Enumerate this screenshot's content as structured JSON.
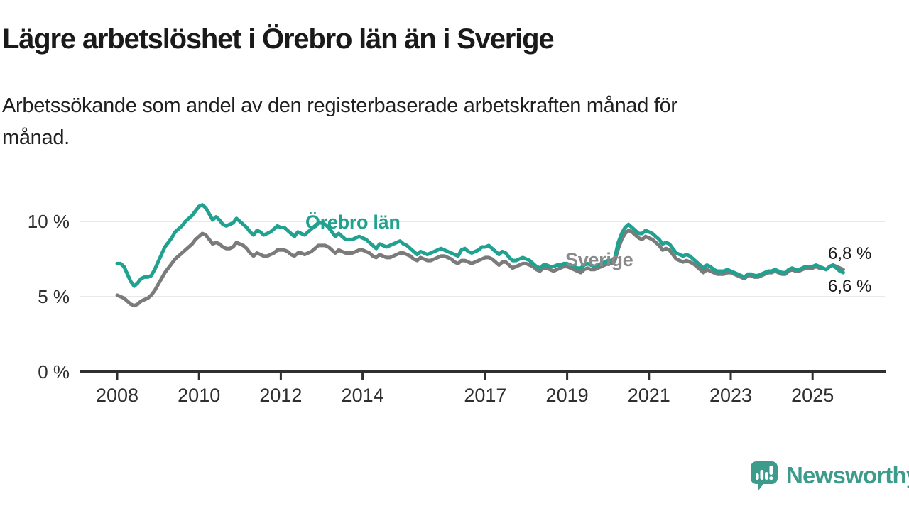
{
  "header": {
    "title": "Lägre arbetslöshet i Örebro län än i Sverige",
    "subtitle_line1": "Arbetssökande som andel av den registerbaserade arbetskraften månad för",
    "subtitle_line2": "månad."
  },
  "footer": {
    "brand": "Newsworthy"
  },
  "colors": {
    "orebro": "#21a190",
    "sverige": "#7b7b7b",
    "sverige_label": "#8a8a8a",
    "logo": "#3d9b8c",
    "axis": "#2f2f2f",
    "grid": "#e0e0e0",
    "text": "#1a1a1a"
  },
  "chart_data": {
    "type": "line",
    "unit": "percent",
    "frequency": "monthly",
    "start": "2008-01",
    "end": "2025-10",
    "ylim": [
      0,
      12
    ],
    "grid": "horizontal",
    "legend_position": "inline-labels",
    "y_ticks": [
      {
        "value": 0,
        "label": "0 %"
      },
      {
        "value": 5,
        "label": "5 %"
      },
      {
        "value": 10,
        "label": "10 %"
      }
    ],
    "x_ticks": [
      {
        "year": 2008,
        "label": "2008"
      },
      {
        "year": 2010,
        "label": "2010"
      },
      {
        "year": 2012,
        "label": "2012"
      },
      {
        "year": 2014,
        "label": "2014"
      },
      {
        "year": 2017,
        "label": "2017"
      },
      {
        "year": 2019,
        "label": "2019"
      },
      {
        "year": 2021,
        "label": "2021"
      },
      {
        "year": 2023,
        "label": "2023"
      },
      {
        "year": 2025,
        "label": "2025"
      }
    ],
    "series": [
      {
        "name": "Örebro län",
        "color": "#21a190",
        "end_label": "6,6 %",
        "values": [
          7.2,
          7.2,
          7.0,
          6.5,
          6.0,
          5.7,
          5.9,
          6.2,
          6.3,
          6.3,
          6.4,
          6.8,
          7.3,
          7.8,
          8.3,
          8.6,
          8.9,
          9.3,
          9.5,
          9.7,
          10.0,
          10.2,
          10.4,
          10.7,
          11.0,
          11.1,
          10.9,
          10.5,
          10.1,
          10.3,
          10.1,
          9.8,
          9.7,
          9.8,
          9.9,
          10.2,
          10.0,
          9.8,
          9.6,
          9.3,
          9.1,
          9.4,
          9.3,
          9.1,
          9.2,
          9.3,
          9.5,
          9.7,
          9.6,
          9.6,
          9.4,
          9.2,
          9.0,
          9.3,
          9.2,
          9.1,
          9.3,
          9.5,
          9.7,
          9.9,
          9.9,
          9.8,
          9.6,
          9.3,
          9.0,
          9.2,
          9.0,
          8.8,
          8.8,
          8.8,
          8.9,
          9.0,
          8.9,
          8.8,
          8.6,
          8.4,
          8.2,
          8.5,
          8.4,
          8.3,
          8.4,
          8.5,
          8.6,
          8.7,
          8.5,
          8.4,
          8.2,
          8.0,
          7.8,
          8.0,
          7.9,
          7.8,
          7.9,
          8.0,
          8.1,
          8.2,
          8.1,
          8.0,
          7.9,
          7.8,
          7.7,
          8.1,
          8.2,
          8.0,
          7.9,
          8.0,
          8.1,
          8.3,
          8.3,
          8.4,
          8.2,
          8.0,
          7.8,
          8.0,
          7.9,
          7.6,
          7.4,
          7.4,
          7.5,
          7.6,
          7.5,
          7.4,
          7.2,
          7.0,
          6.9,
          7.1,
          7.1,
          7.0,
          7.0,
          7.1,
          7.1,
          7.2,
          7.2,
          7.1,
          7.0,
          6.9,
          6.9,
          7.1,
          7.2,
          7.1,
          7.0,
          7.1,
          7.2,
          7.3,
          7.4,
          7.4,
          7.6,
          8.6,
          9.2,
          9.6,
          9.8,
          9.6,
          9.4,
          9.2,
          9.2,
          9.4,
          9.3,
          9.2,
          9.0,
          8.8,
          8.5,
          8.6,
          8.5,
          8.2,
          7.9,
          7.8,
          7.7,
          7.8,
          7.7,
          7.5,
          7.3,
          7.1,
          6.9,
          7.1,
          7.0,
          6.8,
          6.7,
          6.7,
          6.7,
          6.8,
          6.7,
          6.6,
          6.5,
          6.4,
          6.3,
          6.5,
          6.5,
          6.4,
          6.4,
          6.5,
          6.6,
          6.7,
          6.7,
          6.8,
          6.7,
          6.6,
          6.6,
          6.8,
          6.9,
          6.8,
          6.8,
          6.9,
          7.0,
          7.0,
          7.0,
          7.1,
          7.0,
          6.9,
          6.8,
          7.0,
          7.1,
          6.9,
          6.7,
          6.6
        ]
      },
      {
        "name": "Sverige",
        "color": "#7b7b7b",
        "end_label": "6,8 %",
        "values": [
          5.1,
          5.0,
          4.9,
          4.7,
          4.5,
          4.4,
          4.5,
          4.7,
          4.8,
          4.9,
          5.1,
          5.4,
          5.8,
          6.2,
          6.6,
          6.9,
          7.2,
          7.5,
          7.7,
          7.9,
          8.1,
          8.3,
          8.5,
          8.8,
          9.0,
          9.2,
          9.1,
          8.8,
          8.5,
          8.6,
          8.5,
          8.3,
          8.2,
          8.2,
          8.3,
          8.6,
          8.5,
          8.4,
          8.2,
          7.9,
          7.7,
          7.9,
          7.8,
          7.7,
          7.7,
          7.8,
          7.9,
          8.1,
          8.1,
          8.1,
          8.0,
          7.8,
          7.7,
          7.9,
          7.9,
          7.8,
          7.9,
          8.0,
          8.2,
          8.4,
          8.4,
          8.4,
          8.3,
          8.1,
          7.9,
          8.1,
          8.0,
          7.9,
          7.9,
          7.9,
          8.0,
          8.1,
          8.1,
          8.0,
          7.9,
          7.7,
          7.6,
          7.8,
          7.7,
          7.6,
          7.6,
          7.7,
          7.8,
          7.9,
          7.9,
          7.8,
          7.7,
          7.5,
          7.4,
          7.6,
          7.5,
          7.4,
          7.4,
          7.5,
          7.6,
          7.7,
          7.7,
          7.6,
          7.5,
          7.3,
          7.2,
          7.4,
          7.4,
          7.3,
          7.2,
          7.3,
          7.4,
          7.5,
          7.6,
          7.6,
          7.5,
          7.3,
          7.1,
          7.3,
          7.3,
          7.1,
          6.9,
          7.0,
          7.1,
          7.2,
          7.2,
          7.1,
          7.0,
          6.8,
          6.7,
          6.9,
          6.9,
          6.8,
          6.7,
          6.8,
          6.9,
          7.0,
          7.0,
          6.9,
          6.8,
          6.7,
          6.6,
          6.8,
          6.9,
          6.8,
          6.8,
          6.9,
          7.0,
          7.1,
          7.2,
          7.2,
          7.4,
          8.2,
          8.8,
          9.2,
          9.4,
          9.3,
          9.1,
          8.9,
          8.8,
          9.0,
          8.9,
          8.8,
          8.6,
          8.4,
          8.1,
          8.2,
          8.1,
          7.8,
          7.5,
          7.4,
          7.3,
          7.4,
          7.3,
          7.2,
          7.0,
          6.8,
          6.6,
          6.8,
          6.7,
          6.6,
          6.5,
          6.5,
          6.5,
          6.6,
          6.6,
          6.5,
          6.4,
          6.3,
          6.2,
          6.4,
          6.4,
          6.3,
          6.3,
          6.4,
          6.5,
          6.6,
          6.6,
          6.7,
          6.6,
          6.5,
          6.5,
          6.7,
          6.8,
          6.7,
          6.7,
          6.8,
          6.9,
          6.9,
          6.9,
          7.0,
          6.9,
          6.9,
          6.8,
          7.0,
          7.1,
          7.0,
          6.9,
          6.8
        ]
      }
    ]
  }
}
